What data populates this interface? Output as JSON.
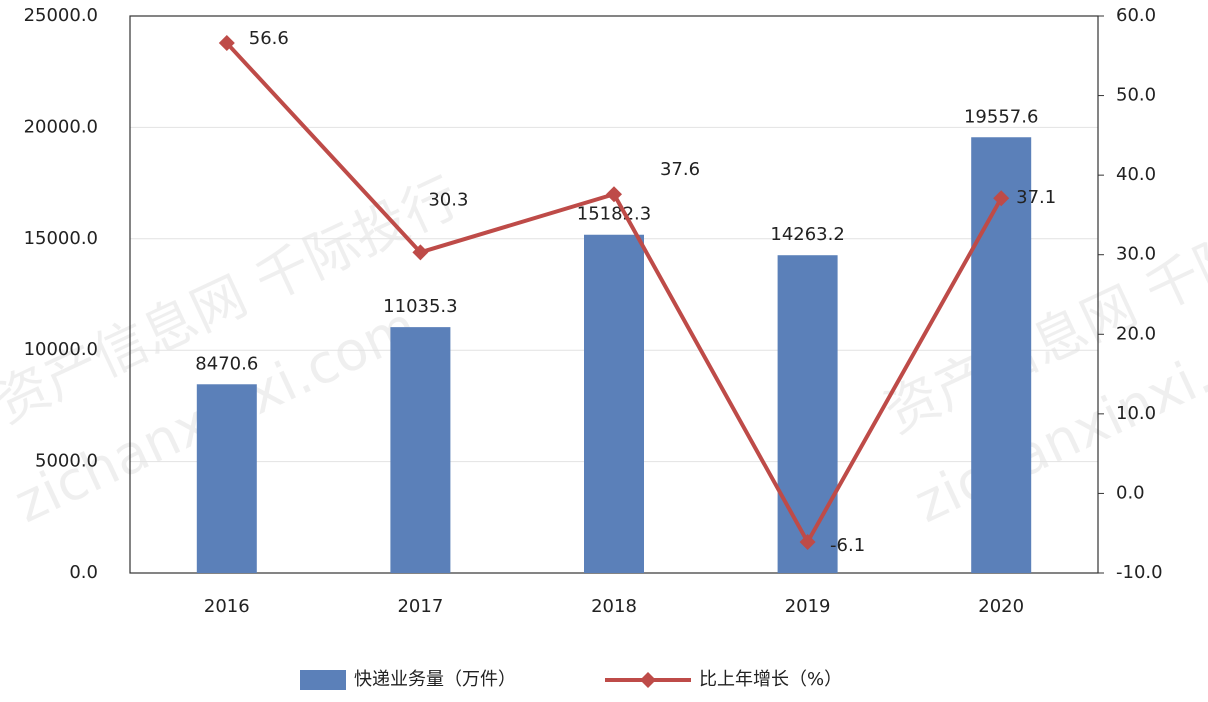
{
  "chart_data": {
    "type": "bar",
    "categories": [
      "2016",
      "2017",
      "2018",
      "2019",
      "2020"
    ],
    "series": [
      {
        "name": "快递业务量（万件）",
        "type": "bar",
        "color": "#5b80b9",
        "values": [
          8470.6,
          11035.3,
          15182.3,
          14263.2,
          19557.6
        ]
      },
      {
        "name": "比上年增长（%）",
        "type": "line",
        "axis": "y2",
        "color": "#be4b48",
        "values": [
          56.6,
          30.3,
          37.6,
          -6.1,
          37.1
        ]
      }
    ],
    "ylim": [
      0,
      25000
    ],
    "yticks": [
      {
        "value": 0,
        "label": "0.0"
      },
      {
        "value": 5000,
        "label": "5000.0"
      },
      {
        "value": 10000,
        "label": "10000.0"
      },
      {
        "value": 15000,
        "label": "15000.0"
      },
      {
        "value": 20000,
        "label": "20000.0"
      },
      {
        "value": 25000,
        "label": "25000.0"
      }
    ],
    "y2lim": [
      -10,
      60
    ],
    "y2ticks": [
      {
        "value": -10,
        "label": "-10.0"
      },
      {
        "value": 0,
        "label": "0.0"
      },
      {
        "value": 10,
        "label": "10.0"
      },
      {
        "value": 20,
        "label": "20.0"
      },
      {
        "value": 30,
        "label": "30.0"
      },
      {
        "value": 40,
        "label": "40.0"
      },
      {
        "value": 50,
        "label": "50.0"
      },
      {
        "value": 60,
        "label": "60.0"
      }
    ],
    "grid": true,
    "legend": "bottom",
    "watermark": [
      "资产信息网 千际投行",
      "zichanxinxi.com"
    ]
  }
}
